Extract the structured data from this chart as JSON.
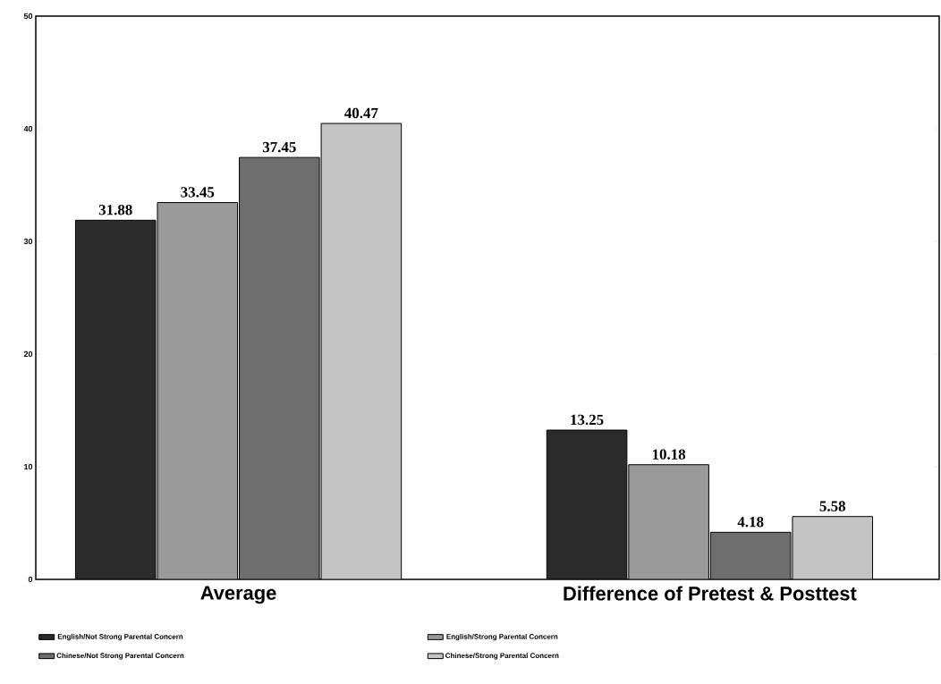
{
  "chart_data": {
    "type": "bar",
    "categories": [
      "Average",
      "Difference of Pretest & Posttest"
    ],
    "series": [
      {
        "name": "English/Not Strong Parental Concern",
        "color": "#2b2b2b",
        "values": [
          31.88,
          13.25
        ]
      },
      {
        "name": "English/Strong Parental Concern",
        "color": "#9a9a9a",
        "values": [
          33.45,
          10.18
        ]
      },
      {
        "name": "Chinese/Not Strong Parental Concern",
        "color": "#6e6e6e",
        "values": [
          37.45,
          4.18
        ]
      },
      {
        "name": "Chinese/Strong Parental Concern",
        "color": "#c4c4c4",
        "values": [
          40.47,
          5.58
        ]
      }
    ],
    "ylim": [
      0,
      50
    ],
    "yticks": [
      0,
      10,
      20,
      30,
      40,
      50
    ],
    "data_labels": true,
    "legend": "bottom",
    "grid": false
  }
}
